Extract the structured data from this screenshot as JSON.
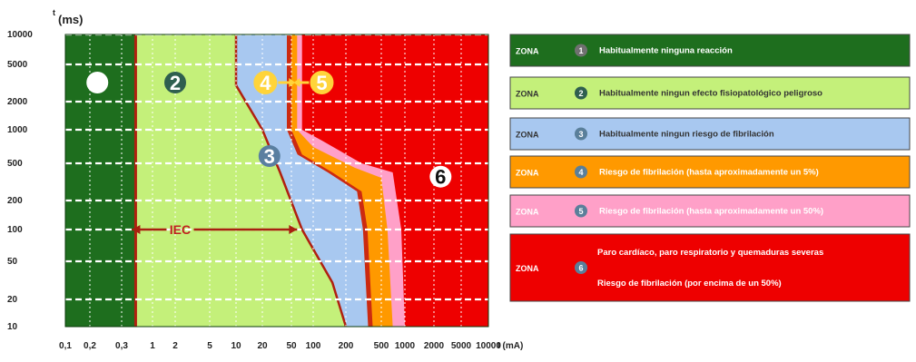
{
  "chart_data": {
    "type": "area",
    "y_axis": {
      "label_t": "t",
      "label_unit": "(ms)",
      "ticks": [
        10,
        20,
        50,
        100,
        200,
        500,
        1000,
        2000,
        5000,
        10000
      ],
      "tick_labels": [
        "10",
        "20",
        "50",
        "100",
        "200",
        "500",
        "1000",
        "2000",
        "5000",
        "10000"
      ],
      "scale": "log",
      "range": [
        10,
        10000
      ]
    },
    "x_axis": {
      "label": "I (mA)",
      "ticks": [
        0.1,
        0.2,
        0.3,
        1,
        2,
        5,
        10,
        20,
        50,
        100,
        200,
        500,
        1000,
        2000,
        5000,
        10000
      ],
      "tick_labels": [
        "0,1",
        "0,2",
        "0,3",
        "1",
        "2",
        "5",
        "10",
        "20",
        "50",
        "100",
        "200",
        "500",
        "1000",
        "2000",
        "5000",
        "10000"
      ],
      "scale": "log",
      "range": [
        0.1,
        10000
      ]
    },
    "grid": true,
    "boundaries": [
      {
        "name": "a",
        "points": [
          [
            0.5,
            10000
          ],
          [
            0.5,
            10
          ]
        ]
      },
      {
        "name": "b",
        "points": [
          [
            10,
            10000
          ],
          [
            10,
            3000
          ],
          [
            20,
            1000
          ],
          [
            35,
            400
          ],
          [
            70,
            100
          ],
          [
            150,
            30
          ],
          [
            200,
            10
          ]
        ]
      },
      {
        "name": "c1",
        "points": [
          [
            50,
            10000
          ],
          [
            50,
            1000
          ],
          [
            70,
            600
          ],
          [
            150,
            400
          ],
          [
            300,
            250
          ],
          [
            350,
            100
          ],
          [
            400,
            10
          ]
        ]
      },
      {
        "name": "c2",
        "points": [
          [
            60,
            10000
          ],
          [
            60,
            1000
          ],
          [
            100,
            700
          ],
          [
            250,
            450
          ],
          [
            500,
            350
          ],
          [
            600,
            100
          ],
          [
            700,
            10
          ]
        ]
      },
      {
        "name": "c3",
        "points": [
          [
            70,
            10000
          ],
          [
            70,
            1000
          ],
          [
            120,
            800
          ],
          [
            300,
            500
          ],
          [
            700,
            400
          ],
          [
            900,
            100
          ],
          [
            1000,
            10
          ]
        ]
      }
    ],
    "zones": [
      {
        "id": "1",
        "color": "#1e6e1e",
        "label_pos": [
          0.22,
          4000
        ],
        "label_color": "#ffffff",
        "text_color": "#ffffff"
      },
      {
        "id": "2",
        "color": "#c4f07a",
        "label_pos": [
          2,
          4000
        ],
        "label_color": "#2f5f4f",
        "text_color": "#ffffff"
      },
      {
        "id": "3",
        "color": "#a8c8f0",
        "label_pos": [
          25,
          700
        ],
        "label_color": "#5a7fa0",
        "text_color": "#ffffff"
      },
      {
        "id": "4",
        "color": "#ff9900",
        "label_pos": [
          22,
          4000
        ],
        "label_color": "#ffd43a",
        "text_color": "#ffffff"
      },
      {
        "id": "5",
        "color": "#ffa0c8",
        "label_pos": [
          120,
          4000
        ],
        "label_color": "#ffd43a",
        "text_color": "#ffffff"
      },
      {
        "id": "6",
        "color": "#ee0000",
        "label_pos": [
          2500,
          450
        ],
        "label_color": "#ffffff",
        "text_color": "#111111"
      }
    ],
    "annotation": {
      "text": "IEC",
      "x_from": 0.45,
      "x_to": 60,
      "y": 100
    }
  },
  "legend": [
    {
      "zona": "ZONA",
      "num": "1",
      "text": "Habitualmente ninguna reacción",
      "bg": "#1e6e1e",
      "fg": "#ffffff",
      "badge": "#707070"
    },
    {
      "zona": "ZONA",
      "num": "2",
      "text": "Habitualmente ningun efecto fisiopatológico peligroso",
      "bg": "#c4f07a",
      "fg": "#333333",
      "badge": "#2f5f4f"
    },
    {
      "zona": "ZONA",
      "num": "3",
      "text": "Habitualmente ningun riesgo de fibrilación",
      "bg": "#a8c8f0",
      "fg": "#333333",
      "badge": "#5a7f9a"
    },
    {
      "zona": "ZONA",
      "num": "4",
      "text": "Riesgo de fibrilación (hasta aproximadamente un 5%)",
      "bg": "#ff9900",
      "fg": "#ffffff",
      "badge": "#5a7f9a"
    },
    {
      "zona": "ZONA",
      "num": "5",
      "text": "Riesgo de fibrilación (hasta aproximadamente un 50%)",
      "bg": "#ffa0c8",
      "fg": "#ffffff",
      "badge": "#5a7f9a"
    },
    {
      "zona": "ZONA",
      "num": "6",
      "text": "Paro cardíaco, paro respiratorio y quemaduras severas",
      "text2": "Riesgo de fibrilación (por encima de un 50%)",
      "bg": "#ee0000",
      "fg": "#ffffff",
      "badge": "#5a7f9a"
    }
  ]
}
